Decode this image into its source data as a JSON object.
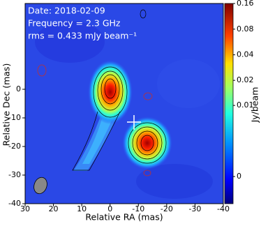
{
  "chart_data": {
    "type": "image",
    "annotations": [
      "Date: 2018-02-09",
      "Frequency = 2.3 GHz",
      "rms = 0.433 mJy beam⁻¹"
    ],
    "xlabel": "Relative RA (mas)",
    "ylabel": "Relative Dec (mas)",
    "xlim": [
      30,
      -40
    ],
    "xticks": [
      30,
      20,
      10,
      0,
      -10,
      -20,
      -30,
      -40
    ],
    "ylim": [
      -40,
      30
    ],
    "yticks": [
      0,
      -10,
      -20,
      -30,
      -40
    ],
    "colorbar": {
      "label": "Jy/beam",
      "scale": "asinh",
      "lim": [
        -0.0024,
        0.16
      ],
      "ticks": [
        0.16,
        0.08,
        0.04,
        0.02,
        0.01,
        0
      ]
    }
  }
}
